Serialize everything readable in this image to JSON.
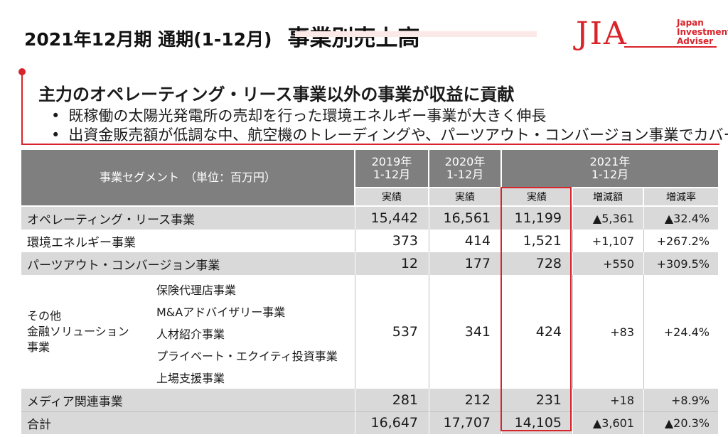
{
  "header": {
    "title": "2021年12月期 通期(1-12月)",
    "title_main": "事業別売上高"
  },
  "logo": {
    "mark": "JIA",
    "lines": [
      "Japan",
      "Investment",
      "Adviser"
    ]
  },
  "message": {
    "headline": "主力のオペレーティング・リース事業以外の事業が収益に貢献",
    "bullets": [
      "既稼働の太陽光発電所の売却を行った環境エネルギー事業が大きく伸長",
      "出資金販売額が低調な中、航空機のトレーディングや、パーツアウト・コンバージョン事業でカバー"
    ]
  },
  "table": {
    "segment_header": "事業セグメント　（単位：百万円）",
    "col_2019": [
      "2019年",
      "1-12月"
    ],
    "col_2020": [
      "2020年",
      "1-12月"
    ],
    "col_2021": [
      "2021年",
      "1-12月"
    ],
    "sub_actual": "実績",
    "sub_change": "増減額",
    "sub_rate": "増減率",
    "rows": [
      {
        "name": "オペレーティング・リース事業",
        "y2019": "15,442",
        "y2020": "16,561",
        "y2021": "11,199",
        "change": "▲5,361",
        "rate": "▲32.4%"
      },
      {
        "name": "環境エネルギー事業",
        "y2019": "373",
        "y2020": "414",
        "y2021": "1,521",
        "change": "+1,107",
        "rate": "+267.2%"
      },
      {
        "name": "パーツアウト・コンバージョン事業",
        "y2019": "12",
        "y2020": "177",
        "y2021": "728",
        "change": "+550",
        "rate": "+309.5%"
      },
      {
        "name_lines": [
          "その他",
          "金融ソリューション",
          "事業"
        ],
        "sub_items": [
          "保険代理店事業",
          "M&Aアドバイザリー事業",
          "人材紹介事業",
          "プライベート・エクイティ投資事業",
          "上場支援事業"
        ],
        "y2019": "537",
        "y2020": "341",
        "y2021": "424",
        "change": "+83",
        "rate": "+24.4%"
      },
      {
        "name": "メディア関連事業",
        "y2019": "281",
        "y2020": "212",
        "y2021": "231",
        "change": "+18",
        "rate": "+8.9%"
      },
      {
        "name": "合計",
        "y2019": "16,647",
        "y2020": "17,707",
        "y2021": "14,105",
        "change": "▲3,601",
        "rate": "▲20.3%"
      }
    ]
  },
  "colors": {
    "accent": "#d9232a",
    "header_bg": "#7f7f7f",
    "shade": "#d9d9d9"
  }
}
